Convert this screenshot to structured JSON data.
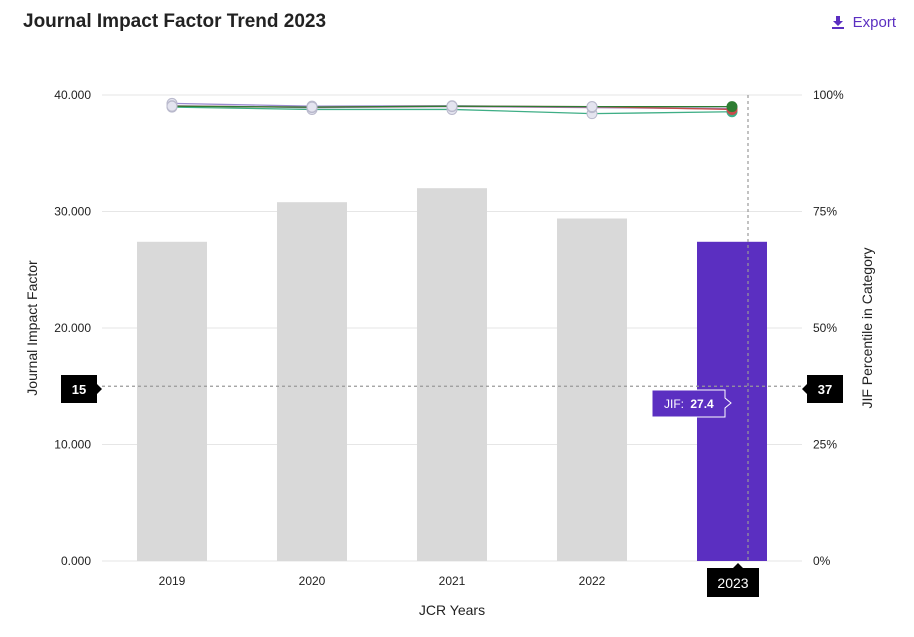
{
  "header": {
    "title": "Journal Impact Factor Trend 2023",
    "export_label": "Export",
    "export_icon": "download-icon"
  },
  "colors": {
    "bar": "#d9d9d9",
    "highlight": "#5b2fc1",
    "accent": "#5b2fc1",
    "marker_bg": "#000000"
  },
  "chart_data": {
    "type": "bar",
    "categories": [
      "2019",
      "2020",
      "2021",
      "2022",
      "2023"
    ],
    "values": [
      27.4,
      30.8,
      32.0,
      29.4,
      27.4
    ],
    "highlight_index": 4,
    "xlabel": "JCR Years",
    "ylabel": "Journal Impact Factor",
    "ylabel_right": "JIF Percentile in Category",
    "ylim": [
      0,
      40
    ],
    "yticks": [
      "0.000",
      "10.000",
      "20.000",
      "30.000",
      "40.000"
    ],
    "y2lim": [
      0,
      100
    ],
    "y2ticks": [
      "0%",
      "25%",
      "50%",
      "75%",
      "100%"
    ],
    "percentile_series": [
      {
        "color": "#9b8bd0",
        "values": [
          98.2,
          97.6,
          97.7,
          97.4,
          97.1
        ]
      },
      {
        "color": "#3fae86",
        "values": [
          97.4,
          96.9,
          96.9,
          96.0,
          96.4
        ]
      },
      {
        "color": "#a87ab6",
        "values": [
          97.7,
          97.3,
          97.5,
          97.3,
          97.0
        ]
      },
      {
        "color": "#c94b4b",
        "values": [
          97.6,
          97.4,
          97.6,
          97.5,
          96.9
        ]
      },
      {
        "color": "#2e7d32",
        "values": [
          97.6,
          97.4,
          97.6,
          97.5,
          97.5
        ]
      }
    ],
    "crosshair": {
      "left_label": "15",
      "right_label": "37",
      "x_label": "2023"
    },
    "tooltip": {
      "label": "JIF:",
      "value": "27.4"
    },
    "grid": true
  }
}
